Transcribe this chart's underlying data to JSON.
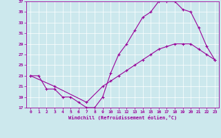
{
  "xlabel": "Windchill (Refroidissement éolien,°C)",
  "bg_color": "#cce8ed",
  "line_color": "#990099",
  "grid_color": "#ffffff",
  "xlim": [
    -0.5,
    23.5
  ],
  "ylim": [
    17,
    37
  ],
  "xticks": [
    0,
    1,
    2,
    3,
    4,
    5,
    6,
    7,
    8,
    9,
    10,
    11,
    12,
    13,
    14,
    15,
    16,
    17,
    18,
    19,
    20,
    21,
    22,
    23
  ],
  "yticks": [
    17,
    19,
    21,
    23,
    25,
    27,
    29,
    31,
    33,
    35,
    37
  ],
  "curve1_x": [
    0,
    1,
    2,
    3,
    4,
    5,
    6,
    7,
    8,
    9,
    10,
    11,
    12,
    13,
    14,
    15,
    16,
    17,
    18,
    19,
    20,
    21,
    22,
    23
  ],
  "curve1_y": [
    23,
    23,
    20.5,
    20.5,
    19,
    19,
    18,
    17,
    17,
    19,
    23.5,
    27,
    29,
    31.5,
    34,
    35,
    37,
    37,
    37,
    35.5,
    35,
    32,
    28.5,
    26
  ],
  "curve2_x": [
    0,
    3,
    7,
    9,
    10,
    11,
    12,
    13,
    14,
    15,
    16,
    17,
    18,
    19,
    20,
    21,
    22,
    23
  ],
  "curve2_y": [
    23,
    21,
    18,
    21,
    22,
    23,
    24,
    25,
    26,
    27,
    28,
    28.5,
    29,
    29,
    29,
    28,
    27,
    26
  ],
  "marker": "+"
}
